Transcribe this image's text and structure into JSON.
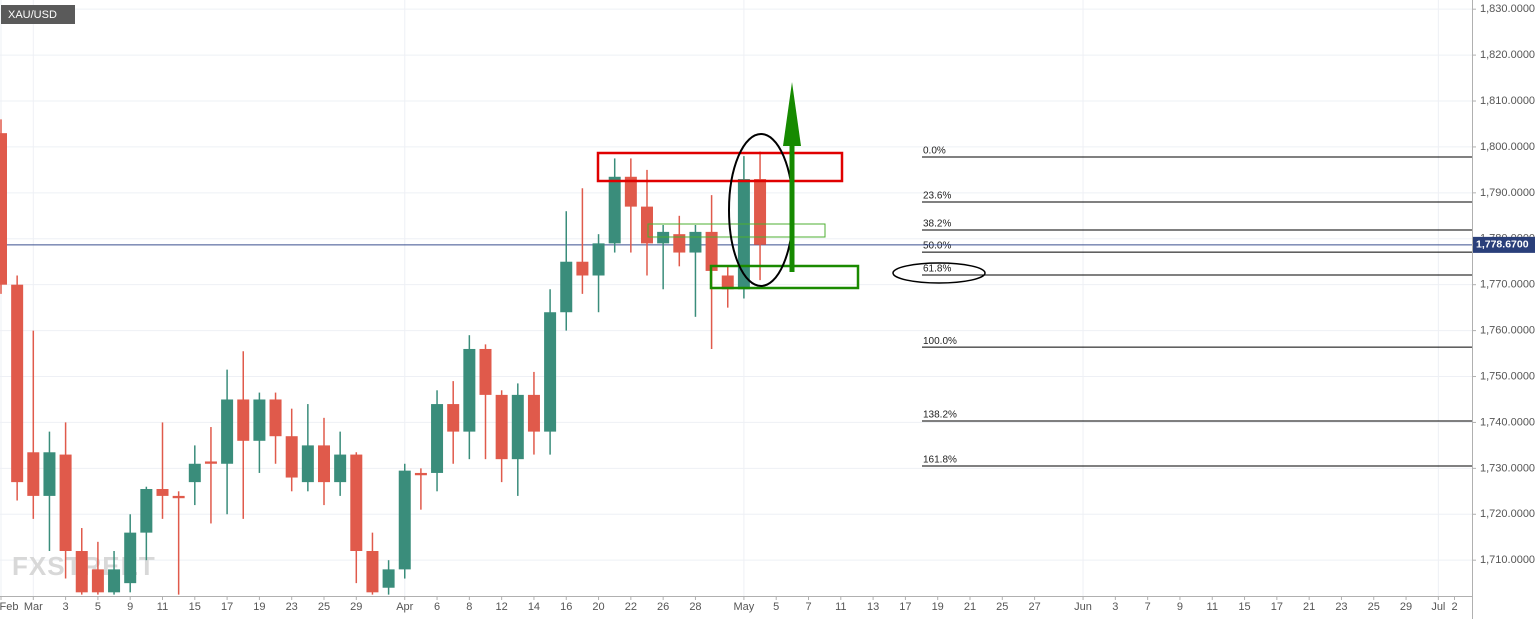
{
  "chart_data": {
    "type": "candlestick",
    "title": "XAU/USD",
    "watermark": "FXSTREET",
    "categories": [
      "Feb",
      null,
      "Mar",
      null,
      "3",
      null,
      "5",
      null,
      "9",
      null,
      "11",
      null,
      "15",
      null,
      "17",
      null,
      "19",
      null,
      "23",
      null,
      "25",
      null,
      "29",
      null,
      null,
      "Apr",
      null,
      "6",
      null,
      "8",
      null,
      "12",
      null,
      "14",
      null,
      "16",
      null,
      "20",
      null,
      "22",
      null,
      "26",
      null,
      "28",
      null,
      null,
      "May",
      null,
      "5",
      null,
      "7",
      null,
      "11",
      null,
      "13",
      null,
      "17",
      null,
      "19",
      null,
      "21",
      null,
      "25",
      null,
      "27",
      null,
      null,
      "Jun",
      null,
      "3",
      null,
      "7",
      null,
      "9",
      null,
      "11",
      null,
      "15",
      null,
      "17",
      null,
      "21",
      null,
      "23",
      null,
      "25",
      null,
      "29",
      null,
      "Jul",
      "2"
    ],
    "open": [
      1803,
      1770,
      1733.5,
      1724,
      1733,
      1712,
      1708,
      1703,
      1705,
      1716,
      1725.5,
      1724,
      1727,
      1731.5,
      1731,
      1745,
      1736,
      1745,
      1737,
      1727,
      1735,
      1727,
      1733,
      1712,
      1704,
      1708,
      1729,
      1729,
      1744,
      1738,
      1756,
      1746,
      1732,
      1746,
      1738,
      1764,
      1775,
      1772,
      1779,
      1793.5,
      1787,
      1779,
      1781,
      1777,
      1781.5,
      1772,
      1769,
      1793,
      null,
      null,
      null,
      null,
      null,
      null,
      null,
      null,
      null,
      null,
      null,
      null,
      null,
      null,
      null,
      null,
      null,
      null,
      null,
      null,
      null,
      null,
      null,
      null,
      null,
      null,
      null,
      null,
      null,
      null,
      null,
      null,
      null,
      null,
      null,
      null,
      null,
      null,
      null,
      null,
      null,
      null,
      null
    ],
    "high": [
      1806,
      1772,
      1760,
      1738,
      1740,
      1717,
      1714,
      1712,
      1720,
      1726,
      1740,
      1725,
      1735,
      1739,
      1751.5,
      1755.5,
      1746.5,
      1746.5,
      1743,
      1744,
      1741,
      1738,
      1733.5,
      1716,
      1710,
      1731,
      1730,
      1747,
      1749,
      1759,
      1757,
      1747,
      1748.5,
      1751,
      1769,
      1786,
      1791,
      1781,
      1797.5,
      1797.5,
      1795,
      1783,
      1785,
      1783,
      1789.5,
      1774,
      1798,
      1799,
      null,
      null,
      null,
      null,
      null,
      null,
      null,
      null,
      null,
      null,
      null,
      null,
      null,
      null,
      null,
      null,
      null,
      null,
      null,
      null,
      null,
      null,
      null,
      null,
      null,
      null,
      null,
      null,
      null,
      null,
      null,
      null,
      null,
      null,
      null,
      null,
      null,
      null,
      null,
      null,
      null,
      null,
      null
    ],
    "low": [
      1768,
      1723,
      1719,
      1712,
      1706,
      1702.5,
      1702.5,
      1702.5,
      1703,
      1710,
      1719,
      1702.5,
      1722,
      1718,
      1720,
      1719,
      1729,
      1731,
      1725,
      1725,
      1722,
      1724,
      1705,
      1702.5,
      1702.5,
      1706,
      1721,
      1725,
      1731,
      1732,
      1732,
      1727,
      1724,
      1733,
      1733,
      1760,
      1768,
      1764,
      1777,
      1777,
      1772,
      1769,
      1774,
      1763,
      1756,
      1765,
      1767,
      1771,
      null,
      null,
      null,
      null,
      null,
      null,
      null,
      null,
      null,
      null,
      null,
      null,
      null,
      null,
      null,
      null,
      null,
      null,
      null,
      null,
      null,
      null,
      null,
      null,
      null,
      null,
      null,
      null,
      null,
      null,
      null,
      null,
      null,
      null,
      null,
      null,
      null,
      null,
      null,
      null,
      null,
      null,
      null
    ],
    "close": [
      1770,
      1727,
      1724,
      1733.5,
      1712,
      1703,
      1703,
      1708,
      1716,
      1725.5,
      1724,
      1723.5,
      1731,
      1731,
      1745,
      1736,
      1745,
      1737,
      1728,
      1735,
      1727,
      1733,
      1712,
      1703,
      1708,
      1729.5,
      1728.5,
      1744,
      1738,
      1756,
      1746,
      1732,
      1746,
      1738,
      1764,
      1775,
      1772,
      1779,
      1793.5,
      1787,
      1779,
      1781.5,
      1777,
      1781.5,
      1773,
      1769,
      1793,
      1778.7,
      null,
      null,
      null,
      null,
      null,
      null,
      null,
      null,
      null,
      null,
      null,
      null,
      null,
      null,
      null,
      null,
      null,
      null,
      null,
      null,
      null,
      null,
      null,
      null,
      null,
      null,
      null,
      null,
      null,
      null,
      null,
      null,
      null,
      null,
      null,
      null,
      null,
      null,
      null,
      null,
      null,
      null,
      null
    ],
    "up_color": "#3a8d7b",
    "down_color": "#e05a4b",
    "ylim": [
      1702.2,
      1832.0
    ],
    "yticks": [
      {
        "value": 1710,
        "label": "1,710.0000"
      },
      {
        "value": 1720,
        "label": "1,720.0000"
      },
      {
        "value": 1730,
        "label": "1,730.0000"
      },
      {
        "value": 1740,
        "label": "1,740.0000"
      },
      {
        "value": 1750,
        "label": "1,750.0000"
      },
      {
        "value": 1760,
        "label": "1,760.0000"
      },
      {
        "value": 1770,
        "label": "1,770.0000"
      },
      {
        "value": 1780,
        "label": "1,780.0000"
      },
      {
        "value": 1790,
        "label": "1,790.0000"
      },
      {
        "value": 1800,
        "label": "1,800.0000"
      },
      {
        "value": 1810,
        "label": "1,810.0000"
      },
      {
        "value": 1820,
        "label": "1,820.0000"
      },
      {
        "value": 1830,
        "label": "1,830.0000"
      }
    ],
    "grid": true,
    "last_price": {
      "value": 1778.67,
      "label": "1,778.6700"
    },
    "fib_levels": [
      {
        "value": 1797.8,
        "label": "0.0%"
      },
      {
        "value": 1788.0,
        "label": "23.6%"
      },
      {
        "value": 1781.9,
        "label": "38.2%"
      },
      {
        "value": 1777.1,
        "label": "50.0%"
      },
      {
        "value": 1772.1,
        "label": "61.8%"
      },
      {
        "value": 1756.4,
        "label": "100.0%"
      },
      {
        "value": 1740.3,
        "label": "138.2%"
      },
      {
        "value": 1730.5,
        "label": "161.8%"
      }
    ]
  }
}
